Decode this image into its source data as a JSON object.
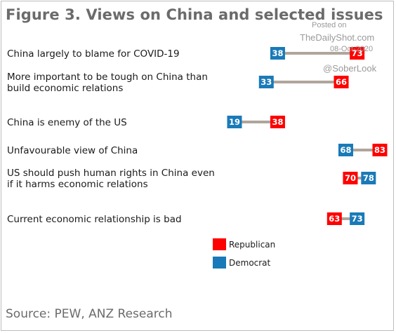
{
  "chart_data": {
    "type": "dot-range",
    "title": "Figure 3. Views on China and selected issues",
    "source": "Source: PEW, ANZ Research",
    "legend_position": "bottom-center",
    "series": [
      {
        "name": "Republican",
        "color": "#ff0000"
      },
      {
        "name": "Democrat",
        "color": "#1a7ab8"
      }
    ],
    "connector_color": "#b0a59b",
    "categories": [
      {
        "label": [
          "China largely to blame for COVID-19"
        ],
        "republican": 73,
        "democrat": 38
      },
      {
        "label": [
          "More important to be tough on China than",
          "build economic relations"
        ],
        "republican": 66,
        "democrat": 33
      },
      {
        "label": [
          "China is enemy of the US"
        ],
        "republican": 38,
        "democrat": 19
      },
      {
        "label": [
          "Unfavourable view of China"
        ],
        "republican": 83,
        "democrat": 68
      },
      {
        "label": [
          "US should push human rights in China even",
          "if it harms economic relations"
        ],
        "republican": 70,
        "democrat": 78
      },
      {
        "label": [
          "Current economic relationship is bad"
        ],
        "republican": 63,
        "democrat": 73
      }
    ]
  },
  "watermark": {
    "line1": "Posted on",
    "line2": "TheDailyShot.com",
    "line3": "08-Oct-2020",
    "line4": "@SoberLook"
  }
}
